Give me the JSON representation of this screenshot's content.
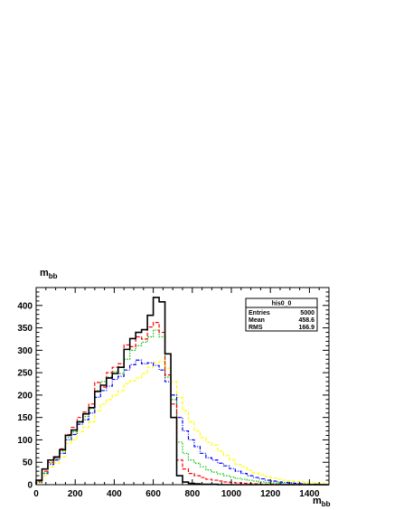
{
  "chart_data": {
    "type": "histogram",
    "title": "m",
    "title_sub": "bb",
    "xlabel": "m",
    "xlabel_sub": "bb",
    "ylabel": "",
    "xlim": [
      0,
      1500
    ],
    "ylim": [
      0,
      440
    ],
    "bin_width": 30,
    "grid": false,
    "x_ticks": [
      0,
      200,
      400,
      600,
      800,
      1000,
      1200,
      1400
    ],
    "y_ticks": [
      0,
      50,
      100,
      150,
      200,
      250,
      300,
      350,
      400
    ],
    "series": [
      {
        "color": "#000000",
        "style": "solid",
        "values": [
          10,
          35,
          55,
          62,
          78,
          110,
          122,
          140,
          158,
          172,
          208,
          222,
          238,
          248,
          262,
          302,
          326,
          340,
          346,
          378,
          418,
          408,
          292,
          150,
          20,
          6,
          3,
          2,
          1,
          1,
          1,
          0,
          0,
          0,
          0,
          0,
          0,
          0,
          0,
          0,
          0,
          0,
          0,
          0,
          0,
          0,
          0,
          0,
          0,
          0
        ]
      },
      {
        "color": "#ff0000",
        "style": "dashed",
        "values": [
          8,
          30,
          50,
          60,
          80,
          112,
          128,
          150,
          162,
          180,
          228,
          218,
          250,
          262,
          270,
          312,
          308,
          330,
          325,
          352,
          362,
          340,
          245,
          180,
          55,
          35,
          25,
          20,
          16,
          12,
          10,
          8,
          6,
          5,
          4,
          3,
          2,
          2,
          1,
          1,
          1,
          0,
          0,
          0,
          0,
          0,
          0,
          0,
          0,
          0
        ]
      },
      {
        "color": "#00c000",
        "style": "dotted",
        "values": [
          6,
          26,
          48,
          58,
          75,
          105,
          118,
          142,
          152,
          170,
          210,
          230,
          240,
          252,
          248,
          280,
          300,
          310,
          318,
          330,
          345,
          330,
          240,
          190,
          95,
          70,
          55,
          48,
          40,
          33,
          28,
          24,
          20,
          17,
          14,
          12,
          10,
          8,
          6,
          5,
          4,
          3,
          2,
          2,
          1,
          1,
          1,
          0,
          0,
          0
        ]
      },
      {
        "color": "#0000ff",
        "style": "dashdot",
        "values": [
          5,
          25,
          45,
          55,
          70,
          100,
          112,
          135,
          145,
          160,
          195,
          210,
          220,
          235,
          242,
          256,
          268,
          278,
          270,
          272,
          266,
          256,
          230,
          200,
          150,
          120,
          100,
          85,
          70,
          60,
          55,
          48,
          42,
          36,
          30,
          25,
          20,
          16,
          13,
          10,
          8,
          6,
          5,
          4,
          3,
          2,
          1,
          1,
          0,
          0
        ]
      },
      {
        "color": "#ffff00",
        "style": "dashed",
        "values": [
          4,
          20,
          40,
          48,
          62,
          92,
          100,
          118,
          128,
          140,
          165,
          180,
          190,
          200,
          210,
          225,
          232,
          238,
          248,
          262,
          272,
          275,
          260,
          230,
          195,
          165,
          140,
          120,
          105,
          95,
          88,
          75,
          65,
          55,
          45,
          40,
          32,
          26,
          22,
          18,
          15,
          12,
          10,
          8,
          7,
          6,
          5,
          4,
          3,
          2
        ]
      }
    ]
  },
  "stats": {
    "title": "his0_0",
    "rows": [
      {
        "label": "Entries",
        "value": "5000"
      },
      {
        "label": "Mean",
        "value": "458.6"
      },
      {
        "label": "RMS",
        "value": "166.9"
      }
    ]
  }
}
